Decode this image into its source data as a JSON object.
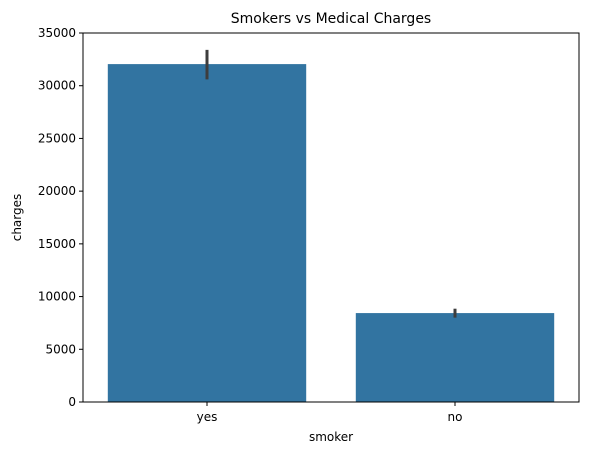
{
  "chart_data": {
    "type": "bar",
    "title": "Smokers vs Medical Charges",
    "xlabel": "smoker",
    "ylabel": "charges",
    "categories": [
      "yes",
      "no"
    ],
    "values": [
      32050,
      8434
    ],
    "error_bars": [
      {
        "low": 30600,
        "high": 33400
      },
      {
        "low": 8000,
        "high": 8850
      }
    ],
    "ylim": [
      0,
      35000
    ],
    "yticks": [
      0,
      5000,
      10000,
      15000,
      20000,
      25000,
      30000,
      35000
    ],
    "grid": false,
    "legend": "none",
    "colors": {
      "bar": "#3274a1",
      "error_bar": "#3d3d3d",
      "axis": "#000000"
    }
  }
}
